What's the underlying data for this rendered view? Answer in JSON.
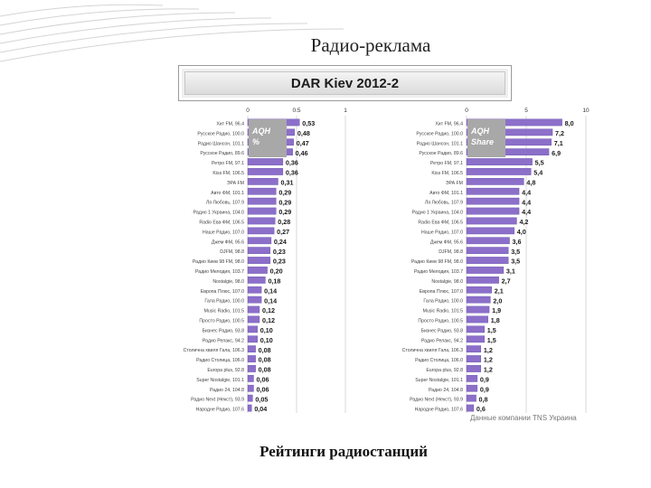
{
  "slide": {
    "title": "Радио-реклама",
    "banner": "DAR Kiev 2012-2",
    "footer": "Рейтинги радиостанций",
    "source_note": "Данные компании TNS Украина"
  },
  "colors": {
    "bar": "#8c6fc9",
    "bar_edge": "#6a4fae",
    "label_box": "#a8a8a8",
    "grid": "#bfbfbf",
    "deco_line": "#d4d4d4"
  },
  "chart_data": [
    {
      "type": "bar",
      "orientation": "horizontal",
      "title": "",
      "legend_box": "AQH %",
      "xlim": [
        0,
        1
      ],
      "xticks": [
        "0",
        "0.5",
        "1"
      ],
      "grid": true,
      "categories": [
        "Хит FM, 96.4",
        "Русское Радио, 100.0",
        "Радио Шансон, 101.1",
        "Русское Радио, 89.6",
        "Ретро FM, 97.1",
        "Kiss FM, 106.5",
        "ЭРА FM",
        "Авто ФМ, 101.1",
        "Ля Любовь, 107.9",
        "Радио 1 Украина, 104.0",
        "Radio Ева ФМ, 106.5",
        "Наше Радио, 107.0",
        "Джем ФМ, 95.6",
        "DJFM, 98.8",
        "Радио Киев 98 FM, 98.0",
        "Радио Мелодия, 103.7",
        "Nostalgie, 98.0",
        "Европа Плюс, 107.0",
        "Гала Радио, 100.0",
        "Music Radio, 101.5",
        "Просто Радио, 100.5",
        "Бизнес Радио, 93.8",
        "Радио Релакс, 94.2",
        "Столична хвиля Гала, 106.3",
        "Радио Столица, 106.0",
        "Europa plus, 92.8",
        "Super Nostalgie, 101.1",
        "Радио 24, 104.8",
        "Радио Next (Некст), 93.9",
        "Народне Радио, 107.6"
      ],
      "values": [
        0.53,
        0.48,
        0.47,
        0.46,
        0.36,
        0.36,
        0.31,
        0.29,
        0.29,
        0.29,
        0.28,
        0.27,
        0.24,
        0.23,
        0.23,
        0.2,
        0.18,
        0.14,
        0.14,
        0.12,
        0.12,
        0.1,
        0.1,
        0.08,
        0.08,
        0.08,
        0.06,
        0.06,
        0.05,
        0.04
      ],
      "value_labels": [
        "0,53",
        "0,48",
        "0,47",
        "0,46",
        "0,36",
        "0,36",
        "0,31",
        "0,29",
        "0,29",
        "0,29",
        "0,28",
        "0,27",
        "0,24",
        "0,23",
        "0,23",
        "0,20",
        "0,18",
        "0,14",
        "0,14",
        "0,12",
        "0,12",
        "0,10",
        "0,10",
        "0,08",
        "0,08",
        "0,08",
        "0,06",
        "0,06",
        "0,05",
        "0,04"
      ]
    },
    {
      "type": "bar",
      "orientation": "horizontal",
      "title": "",
      "legend_box": "AQH Share",
      "xlim": [
        0,
        10
      ],
      "xticks": [
        "0",
        "5",
        "10"
      ],
      "grid": true,
      "categories": [
        "Хит FM, 96.4",
        "Русское Радио, 100.0",
        "Радио Шансон, 101.1",
        "Русское Радио, 89.6",
        "Ретро FM, 97.1",
        "Kiss FM, 106.5",
        "ЭРА FM",
        "Авто ФМ, 101.1",
        "Ля Любовь, 107.9",
        "Радио 1 Украина, 104.0",
        "Radio Ева ФМ, 106.5",
        "Наше Радио, 107.0",
        "Джем ФМ, 95.6",
        "DJFM, 98.8",
        "Радио Киев 98 FM, 98.0",
        "Радио Мелодия, 103.7",
        "Nostalgie, 98.0",
        "Европа Плюс, 107.0",
        "Гала Радио, 100.0",
        "Music Radio, 101.5",
        "Просто Радио, 100.5",
        "Бизнес Радио, 93.8",
        "Радио Релакс, 94.2",
        "Столична хвиля Гала, 106.3",
        "Радио Столица, 106.0",
        "Europa plus, 92.8",
        "Super Nostalgie, 101.1",
        "Радио 24, 104.8",
        "Радио Next (Некст), 93.9",
        "Народне Радио, 107.6"
      ],
      "values": [
        8.0,
        7.2,
        7.1,
        6.9,
        5.5,
        5.4,
        4.8,
        4.4,
        4.4,
        4.4,
        4.2,
        4.0,
        3.6,
        3.5,
        3.5,
        3.1,
        2.7,
        2.1,
        2.0,
        1.9,
        1.8,
        1.5,
        1.5,
        1.2,
        1.2,
        1.2,
        0.9,
        0.9,
        0.8,
        0.6
      ],
      "value_labels": [
        "8,0",
        "7,2",
        "7,1",
        "6,9",
        "5,5",
        "5,4",
        "4,8",
        "4,4",
        "4,4",
        "4,4",
        "4,2",
        "4,0",
        "3,6",
        "3,5",
        "3,5",
        "3,1",
        "2,7",
        "2,1",
        "2,0",
        "1,9",
        "1,8",
        "1,5",
        "1,5",
        "1,2",
        "1,2",
        "1,2",
        "0,9",
        "0,9",
        "0,8",
        "0,6"
      ]
    }
  ]
}
